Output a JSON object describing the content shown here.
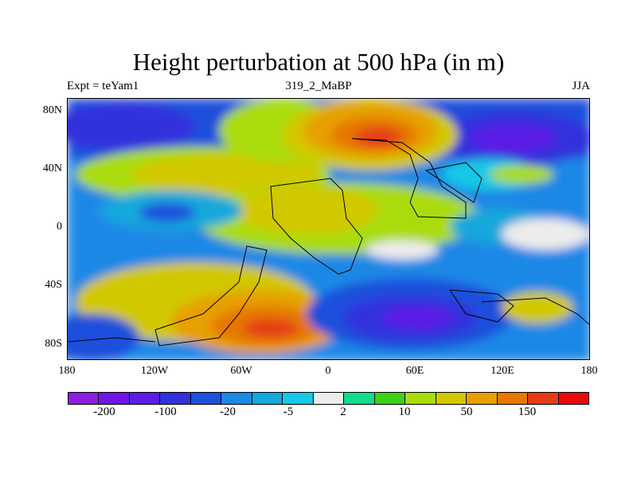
{
  "title": "Height perturbation at 500 hPa (in m)",
  "subtitle_left": "Expt = teYam1",
  "subtitle_center": "319_2_MaBP",
  "subtitle_right": "JJA",
  "y_ticks": [
    "80N",
    "40N",
    "0",
    "40S",
    "80S"
  ],
  "x_ticks": [
    "180",
    "120W",
    "60W",
    "0",
    "60E",
    "120E",
    "180"
  ],
  "colorbar": {
    "colors": [
      "#8b1ee0",
      "#7214e6",
      "#5a1ee6",
      "#3232dc",
      "#1e50dc",
      "#1e88e6",
      "#14a8dc",
      "#14c8e6",
      "#ececec",
      "#14dc8c",
      "#3cd214",
      "#aadc0a",
      "#d2c800",
      "#e6a000",
      "#e67800",
      "#e63c14",
      "#e60a0a"
    ],
    "labels": [
      "-200",
      "-100",
      "-20",
      "-5",
      "2",
      "10",
      "50",
      "150"
    ]
  }
}
